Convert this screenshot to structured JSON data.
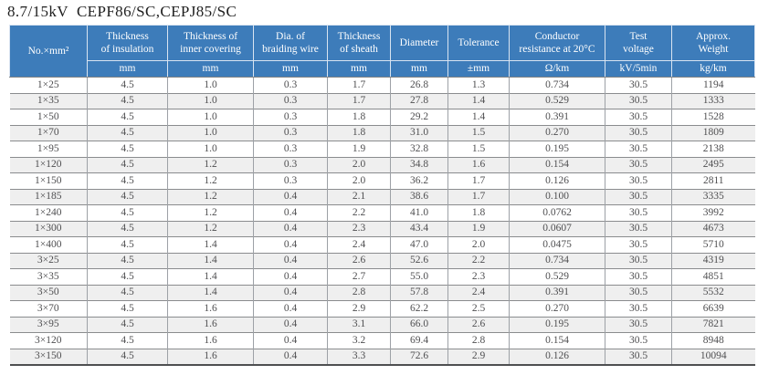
{
  "title": "8.7/15kV  CEPF86/SC,CEPJ85/SC",
  "colors": {
    "header_bg": "#3d7cba",
    "header_text": "#ffffff",
    "stripe": "#efefef",
    "grid_line": "#8a8c8e",
    "body_text": "#4f4f51"
  },
  "table": {
    "columns": [
      {
        "label": "No.×mm²",
        "unit": ""
      },
      {
        "label": "Thickness\nof insulation",
        "unit": "mm"
      },
      {
        "label": "Thickness of\ninner covering",
        "unit": "mm"
      },
      {
        "label": "Dia. of\nbraiding wire",
        "unit": "mm"
      },
      {
        "label": "Thickness\nof sheath",
        "unit": "mm"
      },
      {
        "label": "Diameter",
        "unit": "mm"
      },
      {
        "label": "Tolerance",
        "unit": "±mm"
      },
      {
        "label": "Conductor\nresistance at 20°C",
        "unit": "Ω/km"
      },
      {
        "label": "Test\nvoltage",
        "unit": "kV/5min"
      },
      {
        "label": "Approx.\nWeight",
        "unit": "kg/km"
      }
    ],
    "rows": [
      [
        "1×25",
        "4.5",
        "1.0",
        "0.3",
        "1.7",
        "26.8",
        "1.3",
        "0.734",
        "30.5",
        "1194"
      ],
      [
        "1×35",
        "4.5",
        "1.0",
        "0.3",
        "1.7",
        "27.8",
        "1.4",
        "0.529",
        "30.5",
        "1333"
      ],
      [
        "1×50",
        "4.5",
        "1.0",
        "0.3",
        "1.8",
        "29.2",
        "1.4",
        "0.391",
        "30.5",
        "1528"
      ],
      [
        "1×70",
        "4.5",
        "1.0",
        "0.3",
        "1.8",
        "31.0",
        "1.5",
        "0.270",
        "30.5",
        "1809"
      ],
      [
        "1×95",
        "4.5",
        "1.0",
        "0.3",
        "1.9",
        "32.8",
        "1.5",
        "0.195",
        "30.5",
        "2138"
      ],
      [
        "1×120",
        "4.5",
        "1.2",
        "0.3",
        "2.0",
        "34.8",
        "1.6",
        "0.154",
        "30.5",
        "2495"
      ],
      [
        "1×150",
        "4.5",
        "1.2",
        "0.3",
        "2.0",
        "36.2",
        "1.7",
        "0.126",
        "30.5",
        "2811"
      ],
      [
        "1×185",
        "4.5",
        "1.2",
        "0.4",
        "2.1",
        "38.6",
        "1.7",
        "0.100",
        "30.5",
        "3335"
      ],
      [
        "1×240",
        "4.5",
        "1.2",
        "0.4",
        "2.2",
        "41.0",
        "1.8",
        "0.0762",
        "30.5",
        "3992"
      ],
      [
        "1×300",
        "4.5",
        "1.2",
        "0.4",
        "2.3",
        "43.4",
        "1.9",
        "0.0607",
        "30.5",
        "4673"
      ],
      [
        "1×400",
        "4.5",
        "1.4",
        "0.4",
        "2.4",
        "47.0",
        "2.0",
        "0.0475",
        "30.5",
        "5710"
      ],
      [
        "3×25",
        "4.5",
        "1.4",
        "0.4",
        "2.6",
        "52.6",
        "2.2",
        "0.734",
        "30.5",
        "4319"
      ],
      [
        "3×35",
        "4.5",
        "1.4",
        "0.4",
        "2.7",
        "55.0",
        "2.3",
        "0.529",
        "30.5",
        "4851"
      ],
      [
        "3×50",
        "4.5",
        "1.4",
        "0.4",
        "2.8",
        "57.8",
        "2.4",
        "0.391",
        "30.5",
        "5532"
      ],
      [
        "3×70",
        "4.5",
        "1.6",
        "0.4",
        "2.9",
        "62.2",
        "2.5",
        "0.270",
        "30.5",
        "6639"
      ],
      [
        "3×95",
        "4.5",
        "1.6",
        "0.4",
        "3.1",
        "66.0",
        "2.6",
        "0.195",
        "30.5",
        "7821"
      ],
      [
        "3×120",
        "4.5",
        "1.6",
        "0.4",
        "3.2",
        "69.4",
        "2.8",
        "0.154",
        "30.5",
        "8948"
      ],
      [
        "3×150",
        "4.5",
        "1.6",
        "0.4",
        "3.3",
        "72.6",
        "2.9",
        "0.126",
        "30.5",
        "10094"
      ]
    ]
  }
}
